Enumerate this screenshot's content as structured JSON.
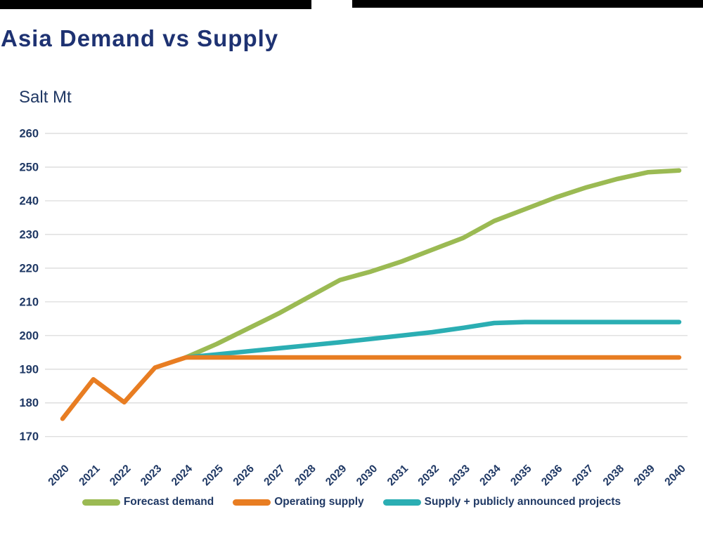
{
  "page": {
    "title": "Asia Demand vs Supply",
    "unit_label": "Salt Mt"
  },
  "colors": {
    "top_bar": "#000000",
    "title_text": "#1E3272",
    "axis_text": "#1F3864",
    "gridline": "#D8D8D8",
    "forecast_demand": "#9BBA53",
    "operating_supply": "#E87D22",
    "supply_projects": "#2BAEB3"
  },
  "legend": {
    "items": [
      {
        "label": "Forecast demand",
        "color": "#9BBA53"
      },
      {
        "label": "Operating supply",
        "color": "#E87D22"
      },
      {
        "label": "Supply + publicly announced projects",
        "color": "#2BAEB3"
      }
    ]
  },
  "chart_data": {
    "type": "line",
    "title": "Asia Demand vs Supply",
    "ylabel": "Salt Mt",
    "xlabel": "",
    "x": [
      2020,
      2021,
      2022,
      2023,
      2024,
      2025,
      2026,
      2027,
      2028,
      2029,
      2030,
      2031,
      2032,
      2033,
      2034,
      2035,
      2036,
      2037,
      2038,
      2039,
      2040
    ],
    "ylim": [
      170,
      260
    ],
    "ytick_interval": 10,
    "yticks": [
      170,
      180,
      190,
      200,
      210,
      220,
      230,
      240,
      250,
      260
    ],
    "grid": "horizontal",
    "legend_position": "bottom",
    "series": [
      {
        "name": "Forecast demand",
        "color": "#9BBA53",
        "values": [
          null,
          null,
          null,
          null,
          193.5,
          197.5,
          202,
          206.5,
          211.5,
          216.5,
          219,
          222,
          225.5,
          229,
          234,
          237.5,
          241,
          244,
          246.5,
          248.5,
          249
        ]
      },
      {
        "name": "Operating supply",
        "color": "#E87D22",
        "values": [
          175.3,
          187,
          180.2,
          190.5,
          193.5,
          193.5,
          193.5,
          193.5,
          193.5,
          193.5,
          193.5,
          193.5,
          193.5,
          193.5,
          193.5,
          193.5,
          193.5,
          193.5,
          193.5,
          193.5,
          193.5
        ]
      },
      {
        "name": "Supply + publicly announced projects",
        "color": "#2BAEB3",
        "values": [
          null,
          null,
          null,
          null,
          193.5,
          194.4,
          195.3,
          196.2,
          197.1,
          198,
          199,
          200,
          201,
          202.3,
          203.7,
          204,
          204,
          204,
          204,
          204,
          204
        ]
      }
    ]
  }
}
